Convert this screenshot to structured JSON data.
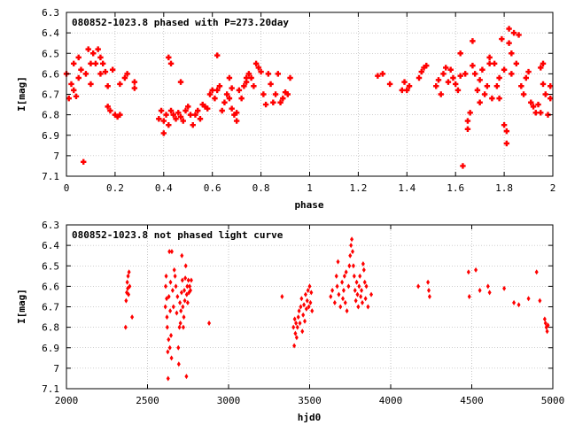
{
  "chart_data": [
    {
      "type": "scatter",
      "title": "080852-1023.8 phased with P=273.20day",
      "xlabel": "phase",
      "ylabel": "I[mag]",
      "xlim": [
        0,
        2
      ],
      "ylim": [
        6.3,
        7.1
      ],
      "y_inverted": true,
      "grid": true,
      "marker_color": "#ff0000",
      "xticks": [
        "0",
        "0.2",
        "0.4",
        "0.6",
        "0.8",
        "1",
        "1.2",
        "1.4",
        "1.6",
        "1.8",
        "2"
      ],
      "yticks": [
        "6.3",
        "6.4",
        "6.5",
        "6.6",
        "6.7",
        "6.8",
        "6.9",
        "7",
        "7.1"
      ],
      "points": [
        [
          0.0,
          6.6
        ],
        [
          0.01,
          6.72
        ],
        [
          0.02,
          6.65
        ],
        [
          0.03,
          6.55
        ],
        [
          0.03,
          6.68
        ],
        [
          0.04,
          6.71
        ],
        [
          0.05,
          6.62
        ],
        [
          0.05,
          6.52
        ],
        [
          0.06,
          6.58
        ],
        [
          0.07,
          7.03
        ],
        [
          0.08,
          6.6
        ],
        [
          0.09,
          6.48
        ],
        [
          0.1,
          6.55
        ],
        [
          0.1,
          6.65
        ],
        [
          0.11,
          6.5
        ],
        [
          0.12,
          6.55
        ],
        [
          0.13,
          6.48
        ],
        [
          0.14,
          6.6
        ],
        [
          0.14,
          6.52
        ],
        [
          0.15,
          6.55
        ],
        [
          0.16,
          6.59
        ],
        [
          0.17,
          6.66
        ],
        [
          0.17,
          6.76
        ],
        [
          0.18,
          6.78
        ],
        [
          0.19,
          6.58
        ],
        [
          0.2,
          6.8
        ],
        [
          0.21,
          6.81
        ],
        [
          0.22,
          6.8
        ],
        [
          0.22,
          6.65
        ],
        [
          0.24,
          6.62
        ],
        [
          0.25,
          6.6
        ],
        [
          0.28,
          6.64
        ],
        [
          0.28,
          6.67
        ],
        [
          0.38,
          6.82
        ],
        [
          0.39,
          6.78
        ],
        [
          0.4,
          6.89
        ],
        [
          0.4,
          6.83
        ],
        [
          0.41,
          6.8
        ],
        [
          0.42,
          6.85
        ],
        [
          0.42,
          6.52
        ],
        [
          0.43,
          6.55
        ],
        [
          0.43,
          6.78
        ],
        [
          0.44,
          6.8
        ],
        [
          0.45,
          6.82
        ],
        [
          0.46,
          6.79
        ],
        [
          0.47,
          6.64
        ],
        [
          0.47,
          6.81
        ],
        [
          0.48,
          6.83
        ],
        [
          0.49,
          6.78
        ],
        [
          0.5,
          6.76
        ],
        [
          0.51,
          6.8
        ],
        [
          0.52,
          6.85
        ],
        [
          0.53,
          6.8
        ],
        [
          0.54,
          6.78
        ],
        [
          0.55,
          6.82
        ],
        [
          0.56,
          6.75
        ],
        [
          0.57,
          6.76
        ],
        [
          0.58,
          6.77
        ],
        [
          0.59,
          6.7
        ],
        [
          0.6,
          6.68
        ],
        [
          0.61,
          6.72
        ],
        [
          0.62,
          6.68
        ],
        [
          0.62,
          6.51
        ],
        [
          0.63,
          6.66
        ],
        [
          0.64,
          6.78
        ],
        [
          0.65,
          6.74
        ],
        [
          0.66,
          6.7
        ],
        [
          0.67,
          6.72
        ],
        [
          0.67,
          6.62
        ],
        [
          0.68,
          6.67
        ],
        [
          0.68,
          6.77
        ],
        [
          0.69,
          6.8
        ],
        [
          0.7,
          6.83
        ],
        [
          0.7,
          6.79
        ],
        [
          0.71,
          6.68
        ],
        [
          0.72,
          6.72
        ],
        [
          0.73,
          6.66
        ],
        [
          0.74,
          6.62
        ],
        [
          0.74,
          6.64
        ],
        [
          0.75,
          6.6
        ],
        [
          0.76,
          6.62
        ],
        [
          0.77,
          6.66
        ],
        [
          0.78,
          6.55
        ],
        [
          0.79,
          6.57
        ],
        [
          0.8,
          6.59
        ],
        [
          0.81,
          6.7
        ],
        [
          0.82,
          6.75
        ],
        [
          0.83,
          6.6
        ],
        [
          0.84,
          6.65
        ],
        [
          0.85,
          6.74
        ],
        [
          0.86,
          6.7
        ],
        [
          0.87,
          6.6
        ],
        [
          0.88,
          6.74
        ],
        [
          0.89,
          6.72
        ],
        [
          0.9,
          6.69
        ],
        [
          0.91,
          6.7
        ],
        [
          0.92,
          6.62
        ],
        [
          1.28,
          6.61
        ],
        [
          1.3,
          6.6
        ],
        [
          1.33,
          6.65
        ],
        [
          1.38,
          6.68
        ],
        [
          1.39,
          6.64
        ],
        [
          1.4,
          6.68
        ],
        [
          1.41,
          6.66
        ],
        [
          1.45,
          6.62
        ],
        [
          1.46,
          6.59
        ],
        [
          1.47,
          6.57
        ],
        [
          1.48,
          6.56
        ],
        [
          1.52,
          6.66
        ],
        [
          1.53,
          6.63
        ],
        [
          1.54,
          6.7
        ],
        [
          1.55,
          6.6
        ],
        [
          1.56,
          6.57
        ],
        [
          1.57,
          6.64
        ],
        [
          1.58,
          6.58
        ],
        [
          1.59,
          6.62
        ],
        [
          1.6,
          6.65
        ],
        [
          1.61,
          6.68
        ],
        [
          1.62,
          6.61
        ],
        [
          1.62,
          6.5
        ],
        [
          1.63,
          7.05
        ],
        [
          1.64,
          6.6
        ],
        [
          1.65,
          6.83
        ],
        [
          1.65,
          6.87
        ],
        [
          1.66,
          6.79
        ],
        [
          1.67,
          6.56
        ],
        [
          1.67,
          6.44
        ],
        [
          1.68,
          6.6
        ],
        [
          1.69,
          6.68
        ],
        [
          1.7,
          6.63
        ],
        [
          1.7,
          6.74
        ],
        [
          1.71,
          6.58
        ],
        [
          1.72,
          6.7
        ],
        [
          1.73,
          6.66
        ],
        [
          1.74,
          6.52
        ],
        [
          1.74,
          6.55
        ],
        [
          1.75,
          6.72
        ],
        [
          1.76,
          6.55
        ],
        [
          1.77,
          6.66
        ],
        [
          1.78,
          6.62
        ],
        [
          1.78,
          6.72
        ],
        [
          1.79,
          6.43
        ],
        [
          1.8,
          6.58
        ],
        [
          1.8,
          6.85
        ],
        [
          1.81,
          6.88
        ],
        [
          1.81,
          6.94
        ],
        [
          1.82,
          6.38
        ],
        [
          1.82,
          6.45
        ],
        [
          1.83,
          6.5
        ],
        [
          1.83,
          6.6
        ],
        [
          1.84,
          6.4
        ],
        [
          1.85,
          6.55
        ],
        [
          1.86,
          6.41
        ],
        [
          1.87,
          6.66
        ],
        [
          1.88,
          6.7
        ],
        [
          1.89,
          6.62
        ],
        [
          1.9,
          6.59
        ],
        [
          1.91,
          6.74
        ],
        [
          1.92,
          6.76
        ],
        [
          1.93,
          6.79
        ],
        [
          1.94,
          6.75
        ],
        [
          1.95,
          6.57
        ],
        [
          1.95,
          6.79
        ],
        [
          1.96,
          6.65
        ],
        [
          1.96,
          6.55
        ],
        [
          1.97,
          6.7
        ],
        [
          1.98,
          6.8
        ],
        [
          1.99,
          6.72
        ],
        [
          1.99,
          6.66
        ]
      ]
    },
    {
      "type": "scatter",
      "title": "080852-1023.8 not phased light curve",
      "xlabel": "hjd0",
      "ylabel": "I[mag]",
      "xlim": [
        2000,
        5000
      ],
      "ylim": [
        6.3,
        7.1
      ],
      "y_inverted": true,
      "grid": true,
      "marker_color": "#ff0000",
      "xticks": [
        "2000",
        "2500",
        "3000",
        "3500",
        "4000",
        "4500",
        "5000"
      ],
      "yticks": [
        "6.3",
        "6.4",
        "6.5",
        "6.6",
        "6.7",
        "6.8",
        "6.9",
        "7",
        "7.1"
      ],
      "points": [
        [
          2365,
          6.8
        ],
        [
          2368,
          6.67
        ],
        [
          2372,
          6.63
        ],
        [
          2375,
          6.58
        ],
        [
          2378,
          6.61
        ],
        [
          2380,
          6.55
        ],
        [
          2383,
          6.64
        ],
        [
          2386,
          6.53
        ],
        [
          2390,
          6.6
        ],
        [
          2405,
          6.75
        ],
        [
          2610,
          6.7
        ],
        [
          2612,
          6.6
        ],
        [
          2615,
          6.55
        ],
        [
          2618,
          6.66
        ],
        [
          2620,
          6.75
        ],
        [
          2622,
          6.8
        ],
        [
          2625,
          6.92
        ],
        [
          2627,
          7.05
        ],
        [
          2630,
          6.86
        ],
        [
          2632,
          6.65
        ],
        [
          2635,
          6.43
        ],
        [
          2638,
          6.9
        ],
        [
          2640,
          6.72
        ],
        [
          2642,
          6.58
        ],
        [
          2645,
          6.84
        ],
        [
          2648,
          6.95
        ],
        [
          2650,
          6.43
        ],
        [
          2655,
          6.62
        ],
        [
          2660,
          6.7
        ],
        [
          2665,
          6.52
        ],
        [
          2670,
          6.55
        ],
        [
          2675,
          6.6
        ],
        [
          2680,
          6.73
        ],
        [
          2685,
          6.65
        ],
        [
          2690,
          6.9
        ],
        [
          2693,
          6.98
        ],
        [
          2697,
          6.8
        ],
        [
          2700,
          6.68
        ],
        [
          2703,
          6.78
        ],
        [
          2706,
          6.72
        ],
        [
          2710,
          6.63
        ],
        [
          2712,
          6.45
        ],
        [
          2715,
          6.57
        ],
        [
          2718,
          6.7
        ],
        [
          2721,
          6.8
        ],
        [
          2724,
          6.75
        ],
        [
          2727,
          6.62
        ],
        [
          2730,
          6.67
        ],
        [
          2733,
          6.56
        ],
        [
          2736,
          6.5
        ],
        [
          2740,
          7.04
        ],
        [
          2742,
          6.64
        ],
        [
          2745,
          6.6
        ],
        [
          2748,
          6.68
        ],
        [
          2752,
          6.57
        ],
        [
          2756,
          6.63
        ],
        [
          2760,
          6.6
        ],
        [
          2765,
          6.62
        ],
        [
          2770,
          6.57
        ],
        [
          2880,
          6.78
        ],
        [
          3330,
          6.65
        ],
        [
          3400,
          6.8
        ],
        [
          3405,
          6.89
        ],
        [
          3408,
          6.76
        ],
        [
          3412,
          6.83
        ],
        [
          3416,
          6.78
        ],
        [
          3420,
          6.85
        ],
        [
          3425,
          6.8
        ],
        [
          3430,
          6.75
        ],
        [
          3435,
          6.72
        ],
        [
          3440,
          6.78
        ],
        [
          3445,
          6.7
        ],
        [
          3450,
          6.66
        ],
        [
          3455,
          6.82
        ],
        [
          3460,
          6.74
        ],
        [
          3465,
          6.69
        ],
        [
          3470,
          6.77
        ],
        [
          3475,
          6.64
        ],
        [
          3480,
          6.71
        ],
        [
          3485,
          6.67
        ],
        [
          3490,
          6.62
        ],
        [
          3495,
          6.7
        ],
        [
          3500,
          6.6
        ],
        [
          3505,
          6.68
        ],
        [
          3510,
          6.63
        ],
        [
          3515,
          6.72
        ],
        [
          3630,
          6.65
        ],
        [
          3640,
          6.62
        ],
        [
          3655,
          6.68
        ],
        [
          3665,
          6.55
        ],
        [
          3670,
          6.6
        ],
        [
          3675,
          6.48
        ],
        [
          3680,
          6.64
        ],
        [
          3690,
          6.7
        ],
        [
          3700,
          6.58
        ],
        [
          3705,
          6.66
        ],
        [
          3710,
          6.62
        ],
        [
          3715,
          6.55
        ],
        [
          3720,
          6.68
        ],
        [
          3725,
          6.53
        ],
        [
          3730,
          6.72
        ],
        [
          3740,
          6.6
        ],
        [
          3745,
          6.5
        ],
        [
          3750,
          6.45
        ],
        [
          3755,
          6.4
        ],
        [
          3760,
          6.37
        ],
        [
          3765,
          6.43
        ],
        [
          3770,
          6.5
        ],
        [
          3775,
          6.55
        ],
        [
          3780,
          6.62
        ],
        [
          3785,
          6.67
        ],
        [
          3790,
          6.58
        ],
        [
          3795,
          6.64
        ],
        [
          3800,
          6.7
        ],
        [
          3805,
          6.6
        ],
        [
          3810,
          6.55
        ],
        [
          3815,
          6.65
        ],
        [
          3820,
          6.62
        ],
        [
          3825,
          6.68
        ],
        [
          3830,
          6.49
        ],
        [
          3835,
          6.52
        ],
        [
          3840,
          6.58
        ],
        [
          3845,
          6.66
        ],
        [
          3850,
          6.6
        ],
        [
          3860,
          6.7
        ],
        [
          3880,
          6.64
        ],
        [
          4170,
          6.6
        ],
        [
          4230,
          6.58
        ],
        [
          4235,
          6.62
        ],
        [
          4240,
          6.65
        ],
        [
          4480,
          6.53
        ],
        [
          4485,
          6.65
        ],
        [
          4525,
          6.52
        ],
        [
          4550,
          6.62
        ],
        [
          4600,
          6.6
        ],
        [
          4610,
          6.63
        ],
        [
          4700,
          6.61
        ],
        [
          4760,
          6.68
        ],
        [
          4790,
          6.69
        ],
        [
          4850,
          6.66
        ],
        [
          4900,
          6.53
        ],
        [
          4920,
          6.67
        ],
        [
          4950,
          6.76
        ],
        [
          4955,
          6.78
        ],
        [
          4960,
          6.8
        ],
        [
          4965,
          6.82
        ],
        [
          4970,
          6.79
        ]
      ]
    }
  ]
}
